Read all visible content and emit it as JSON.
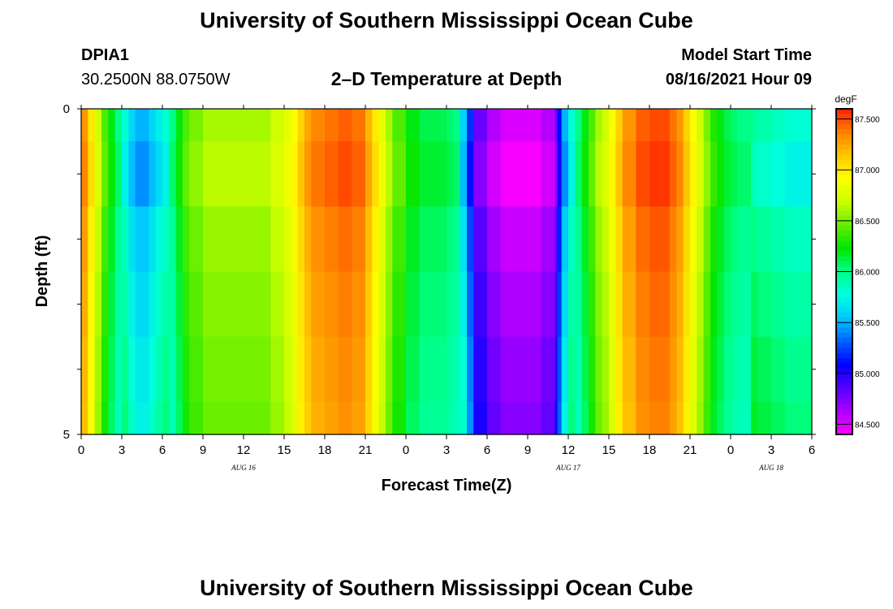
{
  "header": {
    "title": "University of Southern Mississippi Ocean Cube",
    "station_id": "DPIA1",
    "coordinates": "30.2500N  88.0750W",
    "plot_title": "2–D Temperature at Depth",
    "model_start_label": "Model Start Time",
    "model_start_value": "08/16/2021 Hour 09"
  },
  "footer": {
    "title": "University of Southern Mississippi Ocean Cube"
  },
  "colors": {
    "scale": [
      "#ff00ff",
      "#aa00ff",
      "#5500ff",
      "#0000ff",
      "#0060ff",
      "#00c8ff",
      "#00ffdd",
      "#00ff88",
      "#00e600",
      "#66ee00",
      "#ccff00",
      "#ffff00",
      "#ffc800",
      "#ff8000",
      "#ff2000"
    ]
  },
  "chart_data": {
    "type": "heatmap",
    "xlabel": "Forecast Time(Z)",
    "ylabel": "Depth (ft)",
    "x_ticks": [
      "0",
      "3",
      "6",
      "9",
      "12",
      "15",
      "18",
      "21",
      "0",
      "3",
      "6",
      "9",
      "12",
      "15",
      "18",
      "21",
      "0",
      "3",
      "6"
    ],
    "x_range_hours": [
      0,
      54
    ],
    "day_labels": [
      {
        "label": "AUG 16",
        "hour": 12
      },
      {
        "label": "AUG 17",
        "hour": 36
      },
      {
        "label": "AUG 18",
        "hour": 51
      }
    ],
    "y_ticks": [
      "0",
      "5"
    ],
    "y_range": [
      0,
      5
    ],
    "colorbar": {
      "unit": "degF",
      "ticks": [
        "87.500",
        "87.000",
        "86.500",
        "86.000",
        "85.500",
        "85.000",
        "84.500"
      ],
      "range": [
        84.4,
        87.6
      ]
    },
    "depth_bands": [
      0,
      0.5,
      1.5,
      2.5,
      3.5,
      4.5,
      5
    ],
    "hours": [
      0,
      0.5,
      1,
      1.5,
      2,
      2.5,
      3,
      3.5,
      4,
      4.5,
      5,
      5.5,
      6,
      6.5,
      7,
      7.5,
      8,
      9,
      10,
      11,
      12,
      13,
      14,
      15,
      15.5,
      16,
      16.5,
      17,
      18,
      19,
      20,
      21,
      21.5,
      22,
      22.5,
      23,
      24,
      25,
      26,
      27,
      27.5,
      28,
      28.5,
      29,
      30,
      31,
      32,
      33,
      34,
      35,
      35.2,
      35.5,
      36,
      36.5,
      37,
      37.5,
      38,
      38.5,
      39,
      39.5,
      40,
      41,
      42,
      43,
      43.5,
      44,
      44.5,
      45,
      45.5,
      46,
      46.5,
      47,
      47.5,
      48,
      48.5,
      49,
      49.5,
      50,
      50.5,
      51,
      51.5,
      52,
      52.5,
      53,
      53.5,
      54
    ],
    "surface_temps": [
      87.3,
      87.0,
      86.7,
      86.4,
      86.2,
      86.0,
      85.8,
      85.6,
      85.5,
      85.5,
      85.6,
      85.7,
      85.8,
      86.0,
      86.2,
      86.4,
      86.5,
      86.6,
      86.6,
      86.6,
      86.6,
      86.6,
      86.7,
      86.8,
      86.9,
      87.1,
      87.25,
      87.35,
      87.4,
      87.45,
      87.4,
      87.2,
      87.0,
      86.8,
      86.6,
      86.4,
      86.2,
      86.1,
      86.1,
      86.05,
      86.0,
      85.6,
      85.2,
      84.8,
      84.6,
      84.5,
      84.5,
      84.5,
      84.6,
      84.8,
      85.1,
      85.5,
      85.8,
      86.0,
      86.2,
      86.4,
      86.6,
      86.7,
      86.9,
      87.1,
      87.3,
      87.45,
      87.5,
      87.5,
      87.4,
      87.3,
      87.1,
      86.9,
      86.7,
      86.5,
      86.3,
      86.2,
      86.1,
      86.05,
      86.0,
      86.0,
      85.95,
      85.9,
      85.9,
      85.85,
      85.85,
      85.8,
      85.8,
      85.8,
      85.8,
      85.8
    ],
    "depth_offsets": [
      0,
      -0.08,
      0.05,
      0.12,
      0.18,
      0.22
    ]
  }
}
